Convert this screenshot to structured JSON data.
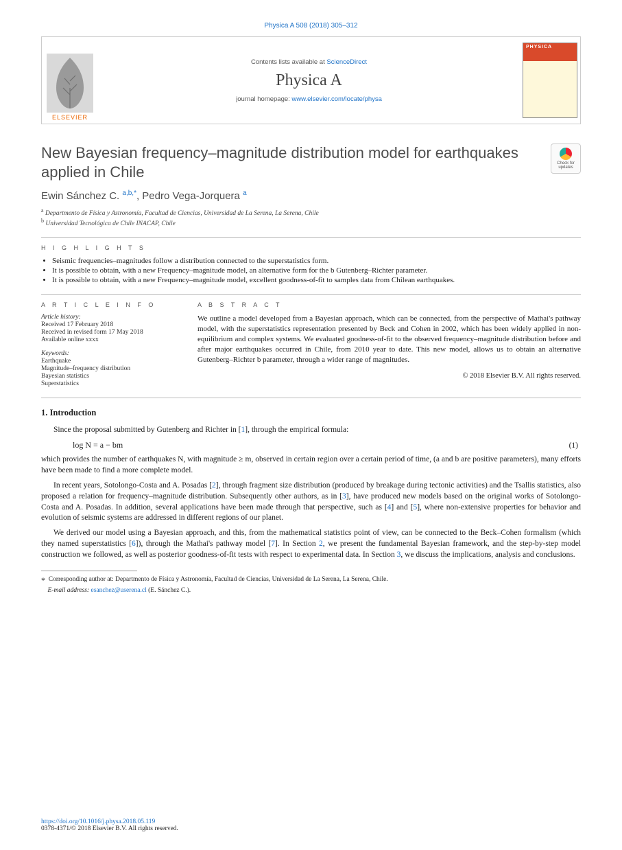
{
  "citation": "Physica A 508 (2018) 305–312",
  "header": {
    "contents_prefix": "Contents lists available at ",
    "contents_link": "ScienceDirect",
    "journal": "Physica A",
    "homepage_prefix": "journal homepage: ",
    "homepage_link": "www.elsevier.com/locate/physa",
    "publisher": "ELSEVIER",
    "cover_label": "PHYSICA"
  },
  "updates_badge": "Check for updates",
  "title": "New Bayesian frequency–magnitude distribution model for earthquakes applied in Chile",
  "authors_html": "Ewin Sánchez C. <sup>a,b,*</sup>, Pedro Vega-Jorquera <sup>a</sup>",
  "affiliations": [
    {
      "mark": "a",
      "text": "Departmento de Física y Astronomía, Facultad de Ciencias, Universidad de La Serena, La Serena, Chile"
    },
    {
      "mark": "b",
      "text": "Universidad Tecnológica de Chile INACAP, Chile"
    }
  ],
  "highlights_label": "H I G H L I G H T S",
  "highlights": [
    "Seismic frequencies–magnitudes follow a distribution connected to the superstatistics form.",
    "It is possible to obtain, with a new Frequency–magnitude model, an alternative form for the b Gutenberg–Richter parameter.",
    "It is possible to obtain, with a new Frequency–magnitude model, excellent goodness-of-fit to samples data from Chilean earthquakes."
  ],
  "article_info_label": "A R T I C L E   I N F O",
  "abstract_label": "A B S T R A C T",
  "history_label": "Article history:",
  "history": [
    "Received 17 February 2018",
    "Received in revised form 17 May 2018",
    "Available online xxxx"
  ],
  "keywords_label": "Keywords:",
  "keywords": [
    "Earthquake",
    "Magnitude–frequency distribution",
    "Bayesian statistics",
    "Superstatistics"
  ],
  "abstract": "We outline a model developed from a Bayesian approach, which can be connected, from the perspective of Mathai's pathway model, with the superstatistics representation presented by Beck and Cohen in 2002, which has been widely applied in non-equilibrium and complex systems. We evaluated goodness-of-fit to the observed frequency–magnitude distribution before and after major earthquakes occurred in Chile, from 2010 year to date. This new model, allows us to obtain an alternative Gutenberg–Richter b parameter, through a wider range of magnitudes.",
  "copyright": "© 2018 Elsevier B.V. All rights reserved.",
  "section1_heading": "1. Introduction",
  "p1_a": "Since the proposal submitted by Gutenberg and Richter in [",
  "p1_ref1": "1",
  "p1_b": "], through the empirical formula:",
  "eq1": "log N = a − bm",
  "eq1_num": "(1)",
  "p2": "which provides the number of earthquakes N, with magnitude ≥ m, observed in certain region over a certain period of time, (a and b are positive parameters), many efforts have been made to find a more complete model.",
  "p3_a": "In recent years, Sotolongo-Costa and A. Posadas [",
  "p3_ref2": "2",
  "p3_b": "], through fragment size distribution (produced by breakage during tectonic activities) and the Tsallis statistics, also proposed a relation for frequency–magnitude distribution. Subsequently other authors, as in [",
  "p3_ref3": "3",
  "p3_c": "], have produced new models based on the original works of Sotolongo-Costa and A. Posadas. In addition, several applications have been made through that perspective, such as [",
  "p3_ref4": "4",
  "p3_d": "] and [",
  "p3_ref5": "5",
  "p3_e": "], where non-extensive properties for behavior and evolution of seismic systems are addressed in different regions of our planet.",
  "p4_a": "We derived our model using a Bayesian approach, and this, from the mathematical statistics point of view, can be connected to the Beck–Cohen formalism (which they named superstatistics [",
  "p4_ref6": "6",
  "p4_b": "]), through the Mathai's pathway model [",
  "p4_ref7": "7",
  "p4_c": "]. In Section ",
  "p4_sec2": "2",
  "p4_d": ", we present the fundamental Bayesian framework, and the step-by-step model construction we followed, as well as posterior goodness-of-fit tests with respect to experimental data. In Section ",
  "p4_sec3": "3",
  "p4_e": ", we discuss the implications, analysis and conclusions.",
  "footnote_corr": "Corresponding author at: Departmento de Física y Astronomía, Facultad de Ciencias, Universidad de La Serena, La Serena, Chile.",
  "footnote_email_label": "E-mail address: ",
  "footnote_email": "esanchez@userena.cl",
  "footnote_email_who": " (E. Sánchez C.).",
  "doi": "https://doi.org/10.1016/j.physa.2018.05.119",
  "issn_line": "0378-4371/© 2018 Elsevier B.V. All rights reserved.",
  "colors": {
    "link": "#2073c7",
    "elsevier_orange": "#eb6500",
    "text": "#222222",
    "heading_gray": "#4d4d4d",
    "rule": "#bbbbbb"
  }
}
